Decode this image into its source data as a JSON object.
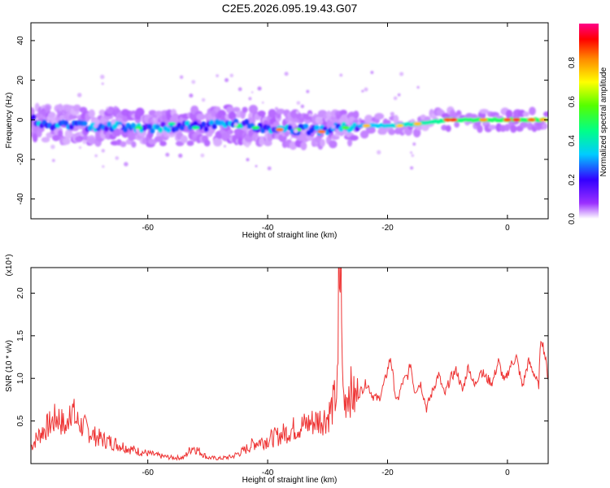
{
  "figure": {
    "title": "C2E5.2026.095.19.43.G07"
  },
  "chart_data": [
    {
      "type": "heatmap",
      "xlabel": "Height of straight line (km)",
      "ylabel": "Frequency (Hz)",
      "xlim": [
        -79.5,
        6.8
      ],
      "ylim": [
        -50,
        49
      ],
      "xticks": [
        -60,
        -40,
        -20,
        0
      ],
      "yticks": [
        -40,
        -20,
        0,
        20,
        40
      ],
      "colorbar": {
        "label": "Normalized spectral amplitude",
        "range": [
          0,
          1
        ],
        "ticks": [
          0.0,
          0.2,
          0.4,
          0.6,
          0.8
        ]
      },
      "ridge": {
        "description_points_x_km": [
          -79,
          -70,
          -60,
          -50,
          -45,
          -40,
          -35,
          -30,
          -25,
          -20,
          -15,
          -10,
          -5,
          0,
          6.8
        ],
        "center_freq_hz": [
          -2,
          -3,
          -4,
          -3,
          -2,
          -4,
          -5,
          -5,
          -3,
          -3,
          -2,
          0,
          0,
          0,
          0
        ]
      }
    },
    {
      "type": "line",
      "xlabel": "Height of straight line (km)",
      "ylabel": "SNR (10 * v/v)",
      "y_multiplier": "(x10⁴)",
      "xlim": [
        -79.5,
        6.8
      ],
      "ylim": [
        0,
        2.3
      ],
      "xticks": [
        -60,
        -40,
        -20,
        0
      ],
      "yticks": [
        0.5,
        1.0,
        1.5,
        2.0
      ],
      "ytick_labels": [
        "0.5",
        "1.0",
        "1.5",
        "2.0"
      ],
      "series": [
        {
          "name": "SNR",
          "color": "#ee3333",
          "x": [
            -79.5,
            -78,
            -76.5,
            -75,
            -73.5,
            -73,
            -72,
            -70.5,
            -69,
            -67.5,
            -66,
            -64,
            -62,
            -60,
            -58,
            -56,
            -54,
            -52.5,
            -50,
            -48,
            -46,
            -44,
            -42,
            -40,
            -38,
            -36,
            -34,
            -32,
            -30,
            -29,
            -28.3,
            -27.9,
            -27.6,
            -27.2,
            -26.5,
            -25.5,
            -24.5,
            -23.5,
            -22.5,
            -21.5,
            -20.5,
            -19.5,
            -18.5,
            -17.5,
            -16.5,
            -16.2,
            -15.5,
            -14.5,
            -13.5,
            -12.5,
            -11.5,
            -10.5,
            -9.5,
            -8.5,
            -7.5,
            -6.5,
            -5.5,
            -4.5,
            -3.5,
            -2.5,
            -1.5,
            -0.5,
            0.5,
            1.5,
            2.5,
            3.5,
            4.5,
            5.2,
            5.6,
            6.2,
            6.8
          ],
          "y": [
            0.2,
            0.35,
            0.45,
            0.55,
            0.4,
            0.72,
            0.5,
            0.42,
            0.33,
            0.28,
            0.25,
            0.2,
            0.15,
            0.12,
            0.09,
            0.07,
            0.07,
            0.2,
            0.07,
            0.06,
            0.08,
            0.15,
            0.25,
            0.28,
            0.33,
            0.4,
            0.45,
            0.5,
            0.55,
            0.7,
            0.9,
            2.2,
            1.0,
            0.7,
            0.9,
            0.75,
            0.85,
            0.95,
            0.8,
            0.75,
            0.95,
            1.25,
            0.7,
            0.95,
            1.05,
            1.2,
            0.85,
            0.95,
            0.65,
            0.85,
            1.05,
            0.8,
            1.0,
            1.1,
            0.85,
            1.15,
            0.9,
            1.1,
            1.0,
            0.95,
            1.2,
            0.95,
            1.15,
            1.25,
            0.9,
            1.2,
            1.05,
            0.9,
            1.5,
            1.3,
            1.0
          ]
        }
      ]
    }
  ]
}
